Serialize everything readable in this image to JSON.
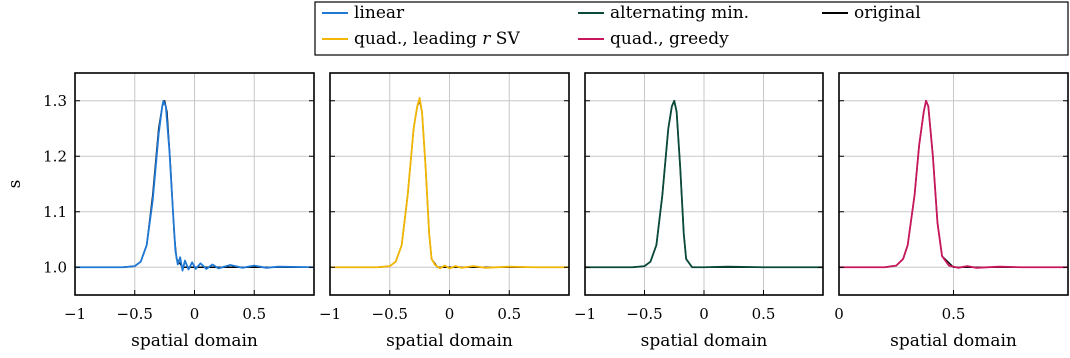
{
  "legend": {
    "placement": "top-right",
    "entries": [
      {
        "key": "linear",
        "label": "linear",
        "color": "#1f78d4"
      },
      {
        "key": "altmin",
        "label": "alternating min.",
        "color": "#0b4a3a"
      },
      {
        "key": "original",
        "label": "original",
        "color": "#000000"
      },
      {
        "key": "quadsv",
        "label": "quad., leading ",
        "label_italic": "r",
        "label_suffix": " SV",
        "color": "#f2b705"
      },
      {
        "key": "quadgreedy",
        "label": "quad., greedy",
        "color": "#c8175d"
      }
    ]
  },
  "chart_data": [
    {
      "type": "line",
      "title": "",
      "xlabel": "spatial domain",
      "ylabel": "s",
      "xlim": [
        -1,
        1
      ],
      "ylim": [
        0.95,
        1.35
      ],
      "xticks": [
        -1,
        -0.5,
        0,
        0.5
      ],
      "xtick_labels": [
        "−1",
        "−0.5",
        "0",
        "0.5"
      ],
      "yticks": [
        1.0,
        1.1,
        1.2,
        1.3
      ],
      "ytick_labels": [
        "1.0",
        "1.1",
        "1.2",
        "1.3"
      ],
      "grid": true,
      "series": [
        {
          "name": "original",
          "color": "#000000",
          "x": [
            -1,
            -0.6,
            -0.5,
            -0.45,
            -0.4,
            -0.35,
            -0.3,
            -0.27,
            -0.25,
            -0.23,
            -0.2,
            -0.17,
            -0.15,
            -0.1,
            0,
            0.5,
            1
          ],
          "y": [
            1.0,
            1.0,
            1.002,
            1.01,
            1.04,
            1.13,
            1.25,
            1.29,
            1.3,
            1.28,
            1.18,
            1.06,
            1.015,
            1.0,
            1.0,
            1.0,
            1.0
          ]
        },
        {
          "name": "linear",
          "color": "#1f78d4",
          "x": [
            -1,
            -0.6,
            -0.5,
            -0.45,
            -0.4,
            -0.35,
            -0.3,
            -0.27,
            -0.26,
            -0.24,
            -0.21,
            -0.18,
            -0.16,
            -0.14,
            -0.12,
            -0.1,
            -0.08,
            -0.05,
            -0.02,
            0.01,
            0.05,
            0.1,
            0.15,
            0.2,
            0.3,
            0.4,
            0.5,
            0.6,
            0.7,
            1
          ],
          "y": [
            1.0,
            1.0,
            1.002,
            1.01,
            1.04,
            1.12,
            1.24,
            1.29,
            1.3,
            1.29,
            1.21,
            1.1,
            1.03,
            1.005,
            1.018,
            0.994,
            1.012,
            0.996,
            1.009,
            0.997,
            1.007,
            0.997,
            1.005,
            0.998,
            1.004,
            0.999,
            1.003,
            0.999,
            1.001,
            1.0
          ]
        }
      ]
    },
    {
      "type": "line",
      "title": "",
      "xlabel": "spatial domain",
      "ylabel": "",
      "xlim": [
        -1,
        1
      ],
      "ylim": [
        0.95,
        1.35
      ],
      "xticks": [
        -1,
        -0.5,
        0,
        0.5
      ],
      "xtick_labels": [
        "−1",
        "−0.5",
        "0",
        "0.5"
      ],
      "grid": true,
      "series": [
        {
          "name": "original",
          "color": "#000000",
          "x": [
            -1,
            -0.6,
            -0.5,
            -0.45,
            -0.4,
            -0.35,
            -0.3,
            -0.27,
            -0.25,
            -0.23,
            -0.2,
            -0.17,
            -0.15,
            -0.1,
            0,
            0.5,
            1
          ],
          "y": [
            1.0,
            1.0,
            1.002,
            1.01,
            1.04,
            1.13,
            1.25,
            1.29,
            1.3,
            1.28,
            1.18,
            1.06,
            1.015,
            1.0,
            1.0,
            1.0,
            1.0
          ]
        },
        {
          "name": "quad., leading r SV",
          "color": "#f2b705",
          "x": [
            -1,
            -0.6,
            -0.5,
            -0.45,
            -0.4,
            -0.35,
            -0.3,
            -0.27,
            -0.25,
            -0.23,
            -0.2,
            -0.17,
            -0.15,
            -0.12,
            -0.08,
            -0.04,
            0,
            0.05,
            0.1,
            0.2,
            0.3,
            0.5,
            0.7,
            1
          ],
          "y": [
            1.0,
            1.0,
            1.002,
            1.01,
            1.04,
            1.13,
            1.25,
            1.29,
            1.305,
            1.28,
            1.18,
            1.06,
            1.015,
            1.004,
            0.998,
            1.003,
            0.998,
            1.002,
            0.999,
            1.002,
            0.999,
            1.001,
            1.0,
            1.0
          ]
        }
      ]
    },
    {
      "type": "line",
      "title": "",
      "xlabel": "spatial domain",
      "ylabel": "",
      "xlim": [
        -1,
        1
      ],
      "ylim": [
        0.95,
        1.35
      ],
      "xticks": [
        -1,
        -0.5,
        0,
        0.5
      ],
      "xtick_labels": [
        "−1",
        "−0.5",
        "0",
        "0.5"
      ],
      "grid": true,
      "series": [
        {
          "name": "original",
          "color": "#000000",
          "x": [
            -1,
            -0.6,
            -0.5,
            -0.45,
            -0.4,
            -0.35,
            -0.3,
            -0.27,
            -0.25,
            -0.23,
            -0.2,
            -0.17,
            -0.15,
            -0.1,
            0,
            0.5,
            1
          ],
          "y": [
            1.0,
            1.0,
            1.002,
            1.01,
            1.04,
            1.13,
            1.25,
            1.29,
            1.3,
            1.28,
            1.18,
            1.06,
            1.015,
            1.0,
            1.0,
            1.0,
            1.0
          ]
        },
        {
          "name": "alternating min.",
          "color": "#0b4a3a",
          "x": [
            -1,
            -0.6,
            -0.5,
            -0.45,
            -0.4,
            -0.35,
            -0.3,
            -0.27,
            -0.25,
            -0.23,
            -0.2,
            -0.17,
            -0.15,
            -0.1,
            0,
            0.2,
            0.5,
            1
          ],
          "y": [
            1.0,
            1.0,
            1.002,
            1.01,
            1.04,
            1.13,
            1.25,
            1.29,
            1.3,
            1.28,
            1.18,
            1.06,
            1.015,
            1.0,
            1.0,
            1.001,
            1.0,
            1.0
          ]
        }
      ]
    },
    {
      "type": "line",
      "title": "",
      "xlabel": "spatial domain",
      "ylabel": "",
      "xlim": [
        0,
        1
      ],
      "ylim": [
        0.95,
        1.35
      ],
      "xticks": [
        0,
        0.5
      ],
      "xtick_labels": [
        "0",
        "0.5"
      ],
      "grid": true,
      "series": [
        {
          "name": "original",
          "color": "#000000",
          "x": [
            0,
            0.2,
            0.25,
            0.28,
            0.3,
            0.33,
            0.35,
            0.37,
            0.38,
            0.39,
            0.41,
            0.43,
            0.45,
            0.5,
            0.6,
            1
          ],
          "y": [
            1.0,
            1.0,
            1.003,
            1.015,
            1.04,
            1.13,
            1.22,
            1.28,
            1.3,
            1.29,
            1.2,
            1.08,
            1.02,
            1.0,
            1.0,
            1.0
          ]
        },
        {
          "name": "quad., greedy",
          "color": "#c8175d",
          "x": [
            0,
            0.2,
            0.25,
            0.28,
            0.3,
            0.33,
            0.35,
            0.37,
            0.38,
            0.39,
            0.41,
            0.43,
            0.45,
            0.48,
            0.52,
            0.56,
            0.6,
            0.7,
            0.8,
            1
          ],
          "y": [
            1.0,
            1.0,
            1.003,
            1.015,
            1.04,
            1.13,
            1.22,
            1.28,
            1.3,
            1.29,
            1.2,
            1.08,
            1.02,
            1.003,
            0.999,
            1.002,
            0.999,
            1.001,
            1.0,
            1.0
          ]
        }
      ]
    }
  ]
}
